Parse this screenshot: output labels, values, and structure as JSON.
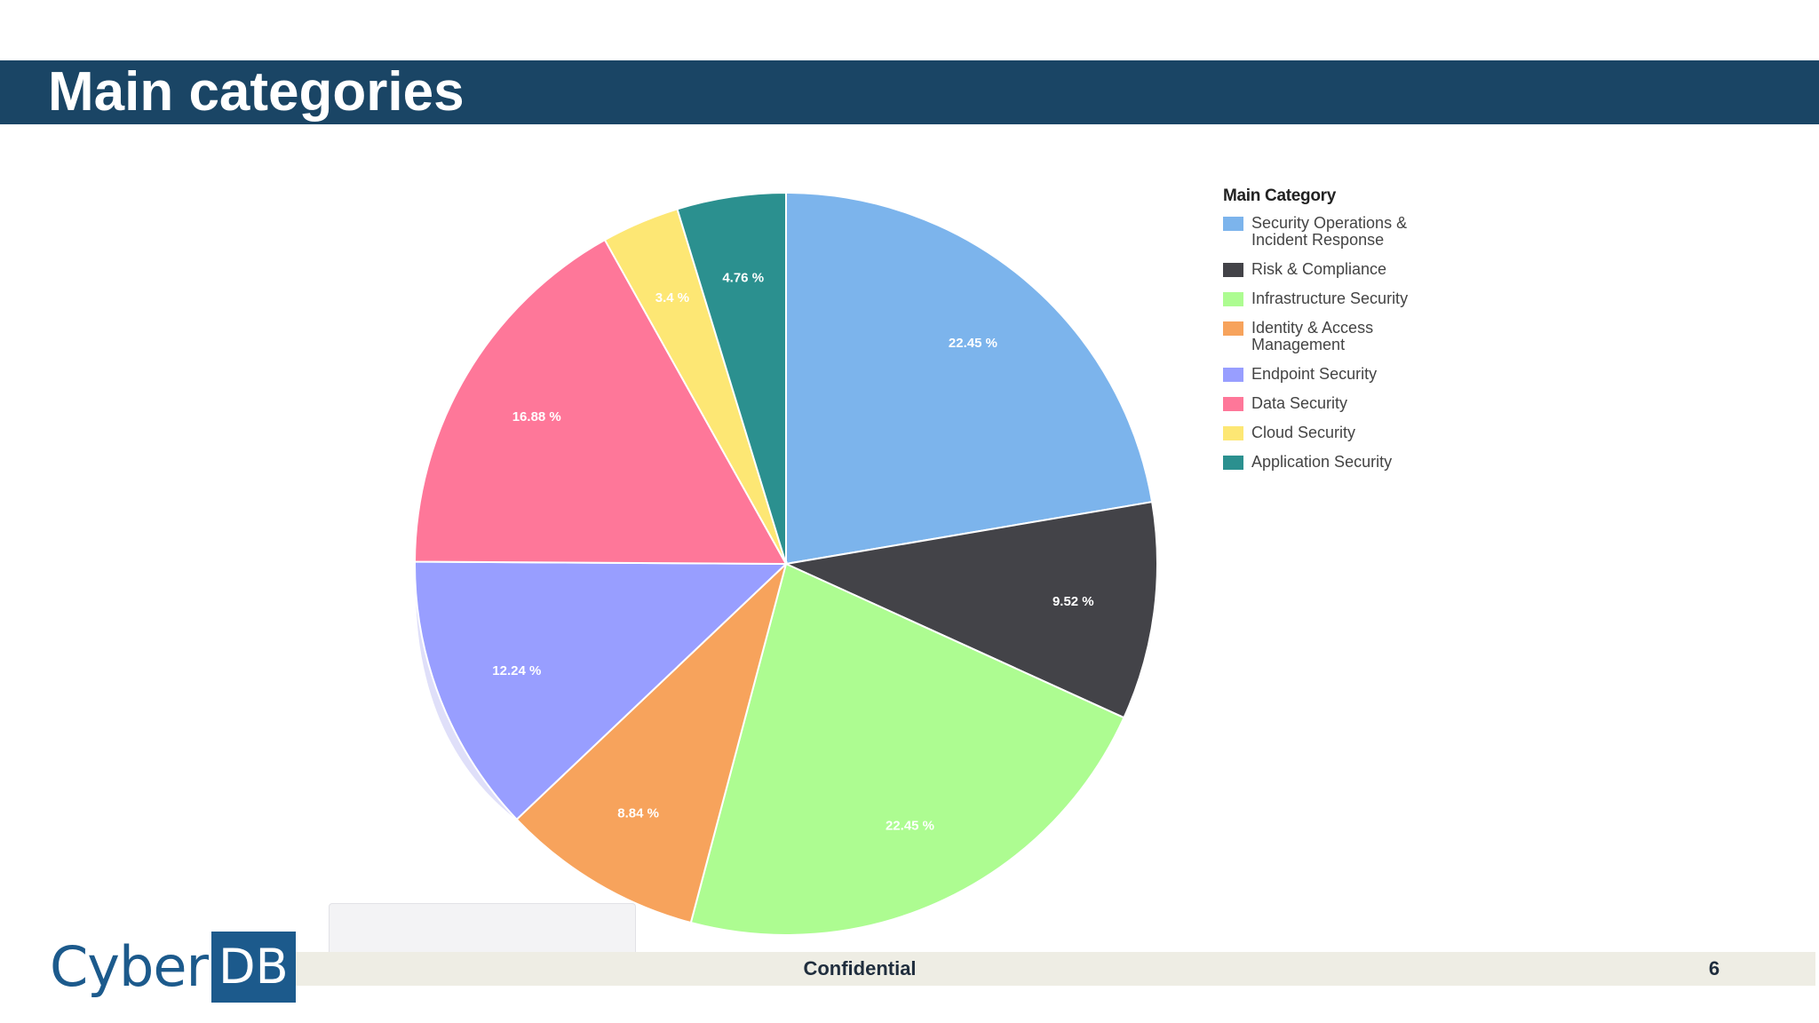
{
  "header": {
    "title": "Main categories"
  },
  "footer": {
    "confidential": "Confidential",
    "page_number": "6"
  },
  "logo": {
    "cyber": "Cyber",
    "db": "DB"
  },
  "colors": {
    "title_bar": "#1a4565",
    "footer_strip": "#eeede4",
    "logo_blue": "#1c5a8c"
  },
  "chart_data": {
    "type": "pie",
    "legend_title": "Main Category",
    "legend_position": "right",
    "slices": [
      {
        "name": "Security Operations & Incident Response",
        "value": 22.45,
        "label": "22.45 %",
        "color": "#7cb4ec"
      },
      {
        "name": "Risk & Compliance",
        "value": 9.52,
        "label": "9.52 %",
        "color": "#434348"
      },
      {
        "name": "Infrastructure Security",
        "value": 22.45,
        "label": "22.45 %",
        "color": "#adfc91"
      },
      {
        "name": "Identity & Access Management",
        "value": 8.84,
        "label": "8.84 %",
        "color": "#f7a35c"
      },
      {
        "name": "Endpoint Security",
        "value": 12.24,
        "label": "12.24 %",
        "color": "#989eff"
      },
      {
        "name": "Data Security",
        "value": 16.88,
        "label": "16.88 %",
        "color": "#fe7799"
      },
      {
        "name": "Cloud Security",
        "value": 3.4,
        "label": "3.4 %",
        "color": "#fde774"
      },
      {
        "name": "Application Security",
        "value": 4.76,
        "label": "4.76 %",
        "color": "#2b908f"
      }
    ]
  }
}
